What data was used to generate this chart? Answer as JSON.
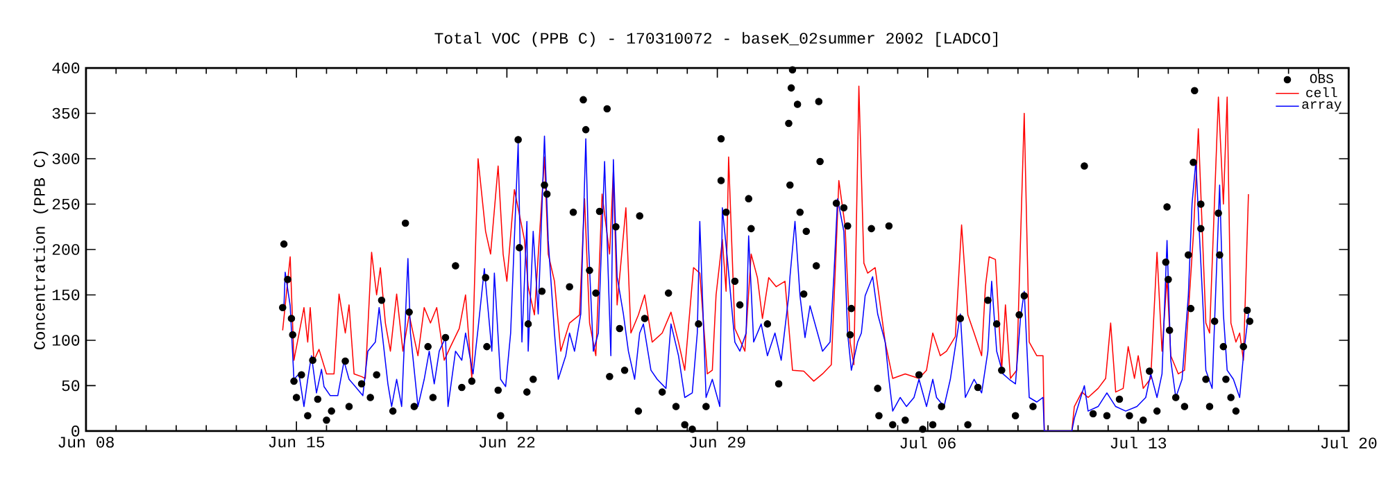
{
  "chart_data": {
    "type": "line",
    "title": "Total VOC (PPB C) - 170310072 - baseK_02summer 2002 [LADCO]",
    "ylabel": "Concentration (PPB C)",
    "xlim": [
      "2002-06-08",
      "2002-07-20"
    ],
    "ylim": [
      0,
      400
    ],
    "xticks": [
      {
        "value": "2002-06-08",
        "label": "Jun 08"
      },
      {
        "value": "2002-06-15",
        "label": "Jun 15"
      },
      {
        "value": "2002-06-22",
        "label": "Jun 22"
      },
      {
        "value": "2002-06-29",
        "label": "Jun 29"
      },
      {
        "value": "2002-07-06",
        "label": "Jul 06"
      },
      {
        "value": "2002-07-13",
        "label": "Jul 13"
      },
      {
        "value": "2002-07-20",
        "label": "Jul 20"
      }
    ],
    "yticks": [
      0,
      50,
      100,
      150,
      200,
      250,
      300,
      350,
      400
    ],
    "legend": "top right",
    "series": [
      {
        "name": "OBS",
        "type": "scatter",
        "marker": "circle",
        "color": "#000000",
        "x": [
          "2002-06-14T14:00",
          "2002-06-14T13:00",
          "2002-06-14T17:00",
          "2002-06-14T20:00",
          "2002-06-14T21:00",
          "2002-06-14T22:00",
          "2002-06-15T00:00",
          "2002-06-15T04:00",
          "2002-06-15T09:00",
          "2002-06-15T13:00",
          "2002-06-15T17:00",
          "2002-06-16T00:00",
          "2002-06-16T04:00",
          "2002-06-16T15:00",
          "2002-06-16T18:00",
          "2002-06-17T04:00",
          "2002-06-17T11:00",
          "2002-06-17T20:00",
          "2002-06-17T16:00",
          "2002-06-18T05:00",
          "2002-06-18T15:00",
          "2002-06-18T18:00",
          "2002-06-18T22:00",
          "2002-06-19T09:00",
          "2002-06-19T13:00",
          "2002-06-19T23:00",
          "2002-06-20T07:00",
          "2002-06-20T12:00",
          "2002-06-20T20:00",
          "2002-06-21T07:00",
          "2002-06-21T08:00",
          "2002-06-21T17:00",
          "2002-06-21T19:00",
          "2002-06-22T09:00",
          "2002-06-22T10:00",
          "2002-06-22T16:00",
          "2002-06-22T17:00",
          "2002-06-22T21:00",
          "2002-06-23T04:00",
          "2002-06-23T06:00",
          "2002-06-23T08:00",
          "2002-06-24T02:00",
          "2002-06-24T05:00",
          "2002-06-24T13:00",
          "2002-06-24T15:00",
          "2002-06-24T18:00",
          "2002-06-24T23:00",
          "2002-06-25T02:00",
          "2002-06-25T08:00",
          "2002-06-25T10:00",
          "2002-06-25T15:00",
          "2002-06-25T18:00",
          "2002-06-25T22:00",
          "2002-06-26T09:00",
          "2002-06-26T10:00",
          "2002-06-26T14:00",
          "2002-06-27T04:00",
          "2002-06-27T09:00",
          "2002-06-27T15:00",
          "2002-06-27T22:00",
          "2002-06-28T04:00",
          "2002-06-28T09:00",
          "2002-06-28T15:00",
          "2002-06-29T03:00",
          "2002-06-29T03:00",
          "2002-06-29T07:00",
          "2002-06-29T14:00",
          "2002-06-29T18:00",
          "2002-06-30T01:00",
          "2002-06-30T03:00",
          "2002-06-30T16:00",
          "2002-07-01T01:00",
          "2002-07-01T09:00",
          "2002-07-01T11:00",
          "2002-07-01T12:00",
          "2002-07-01T10:00",
          "2002-07-01T18:00",
          "2002-07-01T16:00",
          "2002-07-02T09:00",
          "2002-07-02T10:00",
          "2002-07-01T23:00",
          "2002-07-02T07:00",
          "2002-07-01T21:00",
          "2002-07-02T23:00",
          "2002-07-03T05:00",
          "2002-07-03T08:00",
          "2002-07-03T11:00",
          "2002-07-03T10:00",
          "2002-07-04T03:00",
          "2002-07-04T17:00",
          "2002-07-04T08:00",
          "2002-07-04T09:00",
          "2002-07-04T20:00",
          "2002-07-05T06:00",
          "2002-07-05T17:00",
          "2002-07-05T20:00",
          "2002-07-06T04:00",
          "2002-07-06T11:00",
          "2002-07-07T02:00",
          "2002-07-07T08:00",
          "2002-07-07T16:00",
          "2002-07-08T00:00",
          "2002-07-08T07:00",
          "2002-07-08T11:00",
          "2002-07-08T22:00",
          "2002-07-09T01:00",
          "2002-07-09T05:00",
          "2002-07-09T12:00",
          "2002-07-11T05:00",
          "2002-07-11T12:00",
          "2002-07-11T23:00",
          "2002-07-12T09:00",
          "2002-07-12T17:00",
          "2002-07-13T04:00",
          "2002-07-13T09:00",
          "2002-07-13T22:00",
          "2002-07-13T23:00",
          "2002-07-14T00:00",
          "2002-07-14T01:00",
          "2002-07-13T15:00",
          "2002-07-14T06:00",
          "2002-07-14T13:00",
          "2002-07-14T16:00",
          "2002-07-14T18:00",
          "2002-07-14T20:00",
          "2002-07-15T02:00",
          "2002-07-15T02:00",
          "2002-07-15T06:00",
          "2002-07-15T09:00",
          "2002-07-15T13:00",
          "2002-07-15T16:00",
          "2002-07-15T17:00",
          "2002-07-15T20:00",
          "2002-07-15T22:00",
          "2002-07-16T02:00",
          "2002-07-16T06:00",
          "2002-07-16T12:00",
          "2002-07-16T15:00",
          "2002-07-16T17:00",
          "2002-07-14T21:00"
        ],
        "values": [
          206,
          136,
          167,
          124,
          106,
          55,
          37,
          62,
          17,
          78,
          35,
          12,
          22,
          77,
          27,
          52,
          37,
          144,
          62,
          22,
          229,
          131,
          27,
          93,
          37,
          103,
          182,
          48,
          55,
          169,
          93,
          45,
          17,
          321,
          202,
          43,
          118,
          57,
          154,
          271,
          261,
          159,
          241,
          365,
          332,
          177,
          152,
          242,
          355,
          60,
          225,
          113,
          67,
          22,
          237,
          124,
          43,
          152,
          27,
          7,
          2,
          118,
          27,
          322,
          276,
          241,
          165,
          139,
          256,
          223,
          118,
          52,
          339,
          378,
          398,
          271,
          241,
          360,
          363,
          297,
          220,
          182,
          151,
          251,
          246,
          226,
          135,
          106,
          223,
          226,
          47,
          17,
          7,
          12,
          62,
          2,
          7,
          27,
          124,
          7,
          48,
          144,
          118,
          67,
          17,
          128,
          149,
          27,
          292,
          19,
          17,
          35,
          17,
          12,
          66,
          186,
          247,
          167,
          111,
          22,
          37,
          27,
          194,
          135,
          296,
          250,
          223,
          57,
          27,
          121,
          240,
          194,
          93,
          57,
          37,
          22,
          93,
          133,
          121,
          375
        ]
      },
      {
        "name": "cell",
        "type": "line",
        "color": "#ff0000",
        "x": [
          "2002-06-14T13:00",
          "2002-06-14T19:00",
          "2002-06-14T22:00",
          "2002-06-15T06:00",
          "2002-06-15T09:00",
          "2002-06-15T11:00",
          "2002-06-15T14:00",
          "2002-06-15T18:00",
          "2002-06-16T00:00",
          "2002-06-16T06:00",
          "2002-06-16T10:00",
          "2002-06-16T15:00",
          "2002-06-16T18:00",
          "2002-06-16T22:00",
          "2002-06-17T04:00",
          "2002-06-17T07:00",
          "2002-06-17T12:00",
          "2002-06-17T16:00",
          "2002-06-17T19:00",
          "2002-06-17T23:00",
          "2002-06-18T03:00",
          "2002-06-18T08:00",
          "2002-06-18T13:00",
          "2002-06-18T18:00",
          "2002-06-19T01:00",
          "2002-06-19T06:00",
          "2002-06-19T11:00",
          "2002-06-19T16:00",
          "2002-06-19T22:00",
          "2002-06-20T03:00",
          "2002-06-20T10:00",
          "2002-06-20T15:00",
          "2002-06-20T20:00",
          "2002-06-21T01:00",
          "2002-06-21T07:00",
          "2002-06-21T11:00",
          "2002-06-21T17:00",
          "2002-06-21T21:00",
          "2002-06-22T00:00",
          "2002-06-22T06:00",
          "2002-06-22T14:00",
          "2002-06-22T17:00",
          "2002-06-22T22:00",
          "2002-06-23T06:00",
          "2002-06-23T09:00",
          "2002-06-23T14:00",
          "2002-06-23T19:00",
          "2002-06-24T02:00",
          "2002-06-24T10:00",
          "2002-06-24T14:00",
          "2002-06-24T18:00",
          "2002-06-24T23:00",
          "2002-06-25T04:00",
          "2002-06-25T10:00",
          "2002-06-25T13:00",
          "2002-06-25T16:00",
          "2002-06-25T23:00",
          "2002-06-26T03:00",
          "2002-06-26T09:00",
          "2002-06-26T14:00",
          "2002-06-26T20:00",
          "2002-06-27T04:00",
          "2002-06-27T11:00",
          "2002-06-27T17:00",
          "2002-06-27T22:00",
          "2002-06-28T05:00",
          "2002-06-28T10:00",
          "2002-06-28T16:00",
          "2002-06-28T20:00",
          "2002-06-28T23:00",
          "2002-06-29T04:00",
          "2002-06-29T07:00",
          "2002-06-29T09:00",
          "2002-06-29T14:00",
          "2002-06-29T22:00",
          "2002-06-30T03:00",
          "2002-06-30T08:00",
          "2002-06-30T12:00",
          "2002-06-30T17:00",
          "2002-06-30T23:00",
          "2002-07-01T06:00",
          "2002-07-01T12:00",
          "2002-07-01T21:00",
          "2002-07-02T05:00",
          "2002-07-02T12:00",
          "2002-07-02T19:00",
          "2002-07-02T23:00",
          "2002-07-03T01:00",
          "2002-07-03T06:00",
          "2002-07-03T10:00",
          "2002-07-03T13:00",
          "2002-07-03T17:00",
          "2002-07-03T21:00",
          "2002-07-04T00:00",
          "2002-07-04T06:00",
          "2002-07-04T09:00",
          "2002-07-04T14:00",
          "2002-07-04T20:00",
          "2002-07-05T06:00",
          "2002-07-05T17:00",
          "2002-07-05T23:00",
          "2002-07-06T04:00",
          "2002-07-06T10:00",
          "2002-07-06T15:00",
          "2002-07-06T22:00",
          "2002-07-07T03:00",
          "2002-07-07T08:00",
          "2002-07-07T13:00",
          "2002-07-07T19:00",
          "2002-07-07T22:00",
          "2002-07-08T01:00",
          "2002-07-08T06:00",
          "2002-07-08T11:00",
          "2002-07-08T14:00",
          "2002-07-08T18:00",
          "2002-07-08T23:00",
          "2002-07-09T05:00",
          "2002-07-09T09:00",
          "2002-07-09T15:00",
          "2002-07-09T20:00",
          "2002-07-09T21:00",
          "2002-07-10T19:00",
          "2002-07-10T21:00",
          "2002-07-11T03:00",
          "2002-07-11T08:00",
          "2002-07-11T16:00",
          "2002-07-11T22:00",
          "2002-07-12T02:00",
          "2002-07-12T06:00",
          "2002-07-12T12:00",
          "2002-07-12T16:00",
          "2002-07-12T21:00",
          "2002-07-13T00:00",
          "2002-07-13T04:00",
          "2002-07-13T10:00",
          "2002-07-13T15:00",
          "2002-07-13T19:00",
          "2002-07-13T23:00",
          "2002-07-14T02:00",
          "2002-07-14T08:00",
          "2002-07-14T13:00",
          "2002-07-14T20:00",
          "2002-07-15T00:00",
          "2002-07-15T06:00",
          "2002-07-15T09:00",
          "2002-07-15T16:00",
          "2002-07-15T20:00",
          "2002-07-15T23:00",
          "2002-07-16T02:00",
          "2002-07-16T06:00",
          "2002-07-16T09:00",
          "2002-07-16T12:00",
          "2002-07-16T16:00"
        ],
        "values": [
          111,
          192,
          78,
          136,
          98,
          136,
          78,
          90,
          63,
          63,
          151,
          108,
          139,
          63,
          60,
          58,
          197,
          150,
          180,
          119,
          88,
          151,
          88,
          128,
          83,
          136,
          119,
          136,
          78,
          93,
          113,
          150,
          58,
          300,
          220,
          195,
          292,
          195,
          165,
          266,
          211,
          159,
          128,
          302,
          195,
          165,
          88,
          119,
          128,
          256,
          119,
          83,
          261,
          195,
          287,
          139,
          246,
          108,
          128,
          150,
          98,
          108,
          131,
          98,
          67,
          180,
          174,
          63,
          67,
          150,
          211,
          154,
          302,
          113,
          88,
          195,
          169,
          124,
          169,
          159,
          165,
          67,
          66,
          55,
          63,
          73,
          205,
          276,
          226,
          98,
          73,
          380,
          185,
          174,
          180,
          150,
          98,
          58,
          63,
          58,
          67,
          108,
          83,
          88,
          104,
          227,
          128,
          108,
          83,
          159,
          192,
          189,
          67,
          139,
          58,
          67,
          350,
          98,
          83,
          83,
          0,
          0,
          27,
          43,
          37,
          47,
          58,
          119,
          43,
          47,
          93,
          58,
          83,
          47,
          58,
          197,
          88,
          169,
          83,
          63,
          67,
          215,
          333,
          119,
          108,
          368,
          250,
          368,
          119,
          98,
          108,
          78,
          261
        ]
      },
      {
        "name": "array",
        "type": "line",
        "color": "#0000ff",
        "x": [
          "2002-06-14T14:00",
          "2002-06-14T15:00",
          "2002-06-14T19:00",
          "2002-06-14T22:00",
          "2002-06-15T02:00",
          "2002-06-15T06:00",
          "2002-06-15T09:00",
          "2002-06-15T12:00",
          "2002-06-15T16:00",
          "2002-06-15T20:00",
          "2002-06-15T22:00",
          "2002-06-16T03:00",
          "2002-06-16T09:00",
          "2002-06-16T14:00",
          "2002-06-16T18:00",
          "2002-06-16T23:00",
          "2002-06-17T05:00",
          "2002-06-17T09:00",
          "2002-06-17T15:00",
          "2002-06-17T18:00",
          "2002-06-17T20:00",
          "2002-06-18T01:00",
          "2002-06-18T04:00",
          "2002-06-18T08:00",
          "2002-06-18T12:00",
          "2002-06-18T17:00",
          "2002-06-18T19:00",
          "2002-06-19T01:00",
          "2002-06-19T06:00",
          "2002-06-19T10:00",
          "2002-06-19T14:00",
          "2002-06-19T18:00",
          "2002-06-19T23:00",
          "2002-06-20T01:00",
          "2002-06-20T07:00",
          "2002-06-20T12:00",
          "2002-06-20T15:00",
          "2002-06-20T21:00",
          "2002-06-21T01:00",
          "2002-06-21T06:00",
          "2002-06-21T08:00",
          "2002-06-21T12:00",
          "2002-06-21T14:00",
          "2002-06-21T19:00",
          "2002-06-21T23:00",
          "2002-06-22T03:00",
          "2002-06-22T09:00",
          "2002-06-22T12:00",
          "2002-06-22T16:00",
          "2002-06-22T17:00",
          "2002-06-22T21:00",
          "2002-06-23T01:00",
          "2002-06-23T06:00",
          "2002-06-23T09:00",
          "2002-06-23T14:00",
          "2002-06-23T17:00",
          "2002-06-23T23:00",
          "2002-06-24T02:00",
          "2002-06-24T06:00",
          "2002-06-24T11:00",
          "2002-06-24T15:00",
          "2002-06-24T17:00",
          "2002-06-24T21:00",
          "2002-06-25T01:00",
          "2002-06-25T06:00",
          "2002-06-25T11:00",
          "2002-06-25T13:00",
          "2002-06-25T16:00",
          "2002-06-25T21:00",
          "2002-06-26T01:00",
          "2002-06-26T06:00",
          "2002-06-26T10:00",
          "2002-06-26T13:00",
          "2002-06-26T19:00",
          "2002-06-27T00:00",
          "2002-06-27T07:00",
          "2002-06-27T11:00",
          "2002-06-27T17:00",
          "2002-06-27T22:00",
          "2002-06-28T04:00",
          "2002-06-28T08:00",
          "2002-06-28T10:00",
          "2002-06-28T15:00",
          "2002-06-28T20:00",
          "2002-06-29T02:00",
          "2002-06-29T04:00",
          "2002-06-29T08:00",
          "2002-06-29T14:00",
          "2002-06-29T18:00",
          "2002-06-29T23:00",
          "2002-06-30T01:00",
          "2002-06-30T05:00",
          "2002-06-30T11:00",
          "2002-06-30T16:00",
          "2002-06-30T22:00",
          "2002-07-01T03:00",
          "2002-07-01T09:00",
          "2002-07-01T10:00",
          "2002-07-01T14:00",
          "2002-07-01T18:00",
          "2002-07-01T22:00",
          "2002-07-02T02:00",
          "2002-07-02T08:00",
          "2002-07-02T12:00",
          "2002-07-02T18:00",
          "2002-07-02T21:00",
          "2002-07-03T00:00",
          "2002-07-03T05:00",
          "2002-07-03T08:00",
          "2002-07-03T11:00",
          "2002-07-03T16:00",
          "2002-07-03T19:00",
          "2002-07-03T22:00",
          "2002-07-04T04:00",
          "2002-07-04T08:00",
          "2002-07-04T14:00",
          "2002-07-04T17:00",
          "2002-07-04T20:00",
          "2002-07-05T02:00",
          "2002-07-05T07:00",
          "2002-07-05T13:00",
          "2002-07-05T17:00",
          "2002-07-05T23:00",
          "2002-07-06T04:00",
          "2002-07-06T07:00",
          "2002-07-06T13:00",
          "2002-07-06T18:00",
          "2002-07-07T02:00",
          "2002-07-07T06:00",
          "2002-07-07T13:00",
          "2002-07-07T19:00",
          "2002-07-08T00:00",
          "2002-07-08T03:00",
          "2002-07-08T07:00",
          "2002-07-08T12:00",
          "2002-07-08T17:00",
          "2002-07-08T22:00",
          "2002-07-09T02:00",
          "2002-07-09T05:00",
          "2002-07-09T09:00",
          "2002-07-09T15:00",
          "2002-07-09T20:00",
          "2002-07-09T21:00",
          "2002-07-10T19:00",
          "2002-07-10T21:00",
          "2002-07-11T05:00",
          "2002-07-11T08:00",
          "2002-07-11T16:00",
          "2002-07-11T23:00",
          "2002-07-12T06:00",
          "2002-07-12T14:00",
          "2002-07-12T23:00",
          "2002-07-13T06:00",
          "2002-07-13T10:00",
          "2002-07-13T15:00",
          "2002-07-13T19:00",
          "2002-07-13T23:00",
          "2002-07-14T02:00",
          "2002-07-14T06:00",
          "2002-07-14T11:00",
          "2002-07-14T16:00",
          "2002-07-14T19:00",
          "2002-07-14T22:00",
          "2002-07-15T04:00",
          "2002-07-15T06:00",
          "2002-07-15T11:00",
          "2002-07-15T17:00",
          "2002-07-15T20:00",
          "2002-07-15T23:00",
          "2002-07-16T04:00",
          "2002-07-16T09:00",
          "2002-07-16T12:00",
          "2002-07-16T16:00"
        ],
        "values": [
          136,
          175,
          138,
          57,
          63,
          27,
          57,
          83,
          42,
          68,
          49,
          39,
          39,
          77,
          57,
          49,
          39,
          88,
          98,
          136,
          113,
          52,
          27,
          57,
          27,
          190,
          108,
          27,
          57,
          88,
          52,
          88,
          103,
          27,
          88,
          78,
          108,
          63,
          113,
          179,
          149,
          88,
          174,
          57,
          49,
          108,
          317,
          98,
          231,
          88,
          220,
          129,
          325,
          210,
          108,
          57,
          83,
          108,
          88,
          129,
          322,
          210,
          88,
          108,
          297,
          83,
          299,
          170,
          129,
          88,
          57,
          108,
          118,
          67,
          57,
          47,
          118,
          83,
          37,
          42,
          108,
          231,
          37,
          57,
          27,
          246,
          190,
          98,
          88,
          108,
          215,
          98,
          118,
          83,
          108,
          78,
          149,
          170,
          231,
          149,
          103,
          138,
          108,
          88,
          98,
          170,
          256,
          220,
          108,
          67,
          98,
          108,
          149,
          170,
          129,
          98,
          57,
          22,
          37,
          27,
          37,
          57,
          27,
          57,
          37,
          27,
          57,
          129,
          37,
          57,
          42,
          88,
          165,
          88,
          63,
          57,
          52,
          124,
          154,
          37,
          32,
          37,
          0,
          0,
          14,
          50,
          22,
          27,
          42,
          27,
          22,
          27,
          37,
          63,
          37,
          63,
          210,
          78,
          37,
          57,
          149,
          251,
          297,
          129,
          67,
          47,
          271,
          129,
          67,
          57,
          37,
          83,
          129
        ]
      }
    ]
  }
}
